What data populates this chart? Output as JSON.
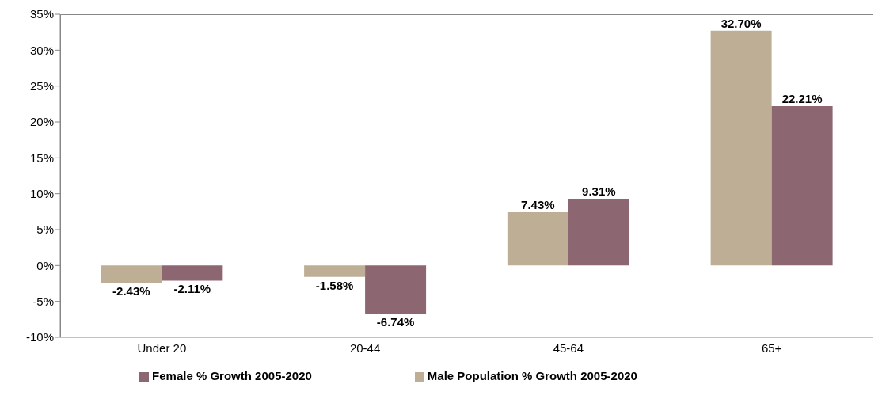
{
  "chart_data": {
    "type": "bar",
    "categories": [
      "Under 20",
      "20-44",
      "45-64",
      "65+"
    ],
    "series": [
      {
        "name": "Male Population % Growth 2005-2020",
        "color": "#bfae96",
        "values": [
          -2.43,
          -1.58,
          7.43,
          32.7
        ],
        "value_labels": [
          "-2.43%",
          "-1.58%",
          "7.43%",
          "32.70%"
        ]
      },
      {
        "name": "Female % Growth 2005-2020",
        "color": "#8c6670",
        "values": [
          -2.11,
          -6.74,
          9.31,
          22.21
        ],
        "value_labels": [
          "-2.11%",
          "-6.74%",
          "9.31%",
          "22.21%"
        ]
      }
    ],
    "ylim": [
      -10,
      35
    ],
    "yticks": [
      {
        "value": -10,
        "label": "-10%"
      },
      {
        "value": -5,
        "label": "-5%"
      },
      {
        "value": 0,
        "label": "0%"
      },
      {
        "value": 5,
        "label": "5%"
      },
      {
        "value": 10,
        "label": "10%"
      },
      {
        "value": 15,
        "label": "15%"
      },
      {
        "value": 20,
        "label": "20%"
      },
      {
        "value": 25,
        "label": "25%"
      },
      {
        "value": 30,
        "label": "30%"
      },
      {
        "value": 35,
        "label": "35%"
      }
    ],
    "grid": false,
    "legend": "bottom"
  }
}
